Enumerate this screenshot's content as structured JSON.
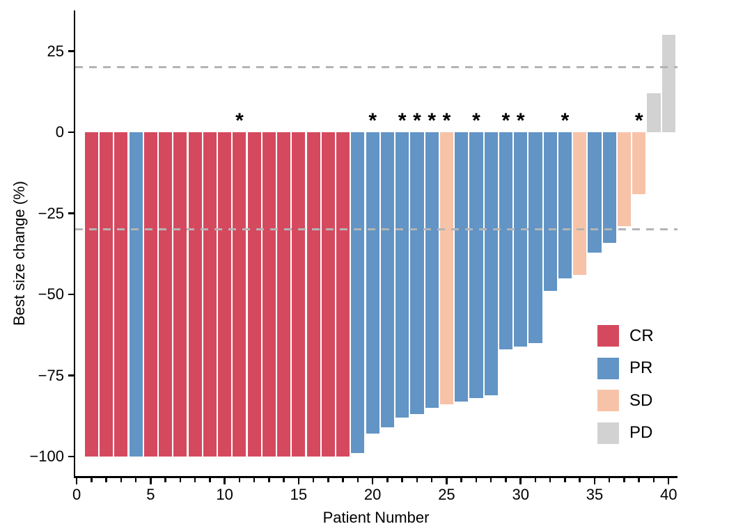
{
  "figure": {
    "kind": "waterfall-plot",
    "background": "#ffffff"
  },
  "chart_data": {
    "type": "bar",
    "title": "",
    "xlabel": "Patient Number",
    "ylabel": "Best size change (%)",
    "x_ticks": [
      0,
      5,
      10,
      15,
      20,
      25,
      30,
      35,
      40
    ],
    "y_ticks": [
      25,
      0,
      -25,
      -50,
      -75,
      -100
    ],
    "y_tick_labels": [
      "25",
      "0",
      "−25",
      "−50",
      "−75",
      "−100"
    ],
    "xlim": [
      -0.1,
      40.6
    ],
    "ylim": [
      -106,
      37.6
    ],
    "bar_width": 0.9,
    "grid": "off",
    "reference_lines": [
      {
        "y": 20,
        "style": "dashed",
        "color": "#b4b4b4"
      },
      {
        "y": -30,
        "style": "dashed",
        "color": "#b4b4b4"
      }
    ],
    "response_colors": {
      "CR": "#d5495f",
      "PR": "#6294c5",
      "SD": "#f7c3a8",
      "PD": "#d2d2d2"
    },
    "legend": {
      "position": "inside-right",
      "entries": [
        {
          "label": "CR",
          "color": "#d5495f"
        },
        {
          "label": "PR",
          "color": "#6294c5"
        },
        {
          "label": "SD",
          "color": "#f7c3a8"
        },
        {
          "label": "PD",
          "color": "#d2d2d2"
        }
      ]
    },
    "annotation_symbol": "*",
    "patients": [
      {
        "patient": 1,
        "value": -100,
        "response": "CR",
        "star": false
      },
      {
        "patient": 2,
        "value": -100,
        "response": "CR",
        "star": false
      },
      {
        "patient": 3,
        "value": -100,
        "response": "CR",
        "star": false
      },
      {
        "patient": 4,
        "value": -100,
        "response": "PR",
        "star": false
      },
      {
        "patient": 5,
        "value": -100,
        "response": "CR",
        "star": false
      },
      {
        "patient": 6,
        "value": -100,
        "response": "CR",
        "star": false
      },
      {
        "patient": 7,
        "value": -100,
        "response": "CR",
        "star": false
      },
      {
        "patient": 8,
        "value": -100,
        "response": "CR",
        "star": false
      },
      {
        "patient": 9,
        "value": -100,
        "response": "CR",
        "star": false
      },
      {
        "patient": 10,
        "value": -100,
        "response": "CR",
        "star": false
      },
      {
        "patient": 11,
        "value": -100,
        "response": "CR",
        "star": true
      },
      {
        "patient": 12,
        "value": -100,
        "response": "CR",
        "star": false
      },
      {
        "patient": 13,
        "value": -100,
        "response": "CR",
        "star": false
      },
      {
        "patient": 14,
        "value": -100,
        "response": "CR",
        "star": false
      },
      {
        "patient": 15,
        "value": -100,
        "response": "CR",
        "star": false
      },
      {
        "patient": 16,
        "value": -100,
        "response": "CR",
        "star": false
      },
      {
        "patient": 17,
        "value": -100,
        "response": "CR",
        "star": false
      },
      {
        "patient": 18,
        "value": -100,
        "response": "CR",
        "star": false
      },
      {
        "patient": 19,
        "value": -99,
        "response": "PR",
        "star": false
      },
      {
        "patient": 20,
        "value": -93,
        "response": "PR",
        "star": true
      },
      {
        "patient": 21,
        "value": -91,
        "response": "PR",
        "star": false
      },
      {
        "patient": 22,
        "value": -88,
        "response": "PR",
        "star": true
      },
      {
        "patient": 23,
        "value": -87,
        "response": "PR",
        "star": true
      },
      {
        "patient": 24,
        "value": -85,
        "response": "PR",
        "star": true
      },
      {
        "patient": 25,
        "value": -84,
        "response": "SD",
        "star": true
      },
      {
        "patient": 26,
        "value": -83,
        "response": "PR",
        "star": false
      },
      {
        "patient": 27,
        "value": -82,
        "response": "PR",
        "star": true
      },
      {
        "patient": 28,
        "value": -81,
        "response": "PR",
        "star": false
      },
      {
        "patient": 29,
        "value": -67,
        "response": "PR",
        "star": true
      },
      {
        "patient": 30,
        "value": -66,
        "response": "PR",
        "star": true
      },
      {
        "patient": 31,
        "value": -65,
        "response": "PR",
        "star": false
      },
      {
        "patient": 32,
        "value": -49,
        "response": "PR",
        "star": false
      },
      {
        "patient": 33,
        "value": -45,
        "response": "PR",
        "star": true
      },
      {
        "patient": 34,
        "value": -44,
        "response": "SD",
        "star": false
      },
      {
        "patient": 35,
        "value": -37,
        "response": "PR",
        "star": false
      },
      {
        "patient": 36,
        "value": -34,
        "response": "PR",
        "star": false
      },
      {
        "patient": 37,
        "value": -29,
        "response": "SD",
        "star": false
      },
      {
        "patient": 38,
        "value": -19,
        "response": "SD",
        "star": true
      },
      {
        "patient": 39,
        "value": 12,
        "response": "PD",
        "star": false
      },
      {
        "patient": 40,
        "value": 30,
        "response": "PD",
        "star": false
      }
    ]
  }
}
